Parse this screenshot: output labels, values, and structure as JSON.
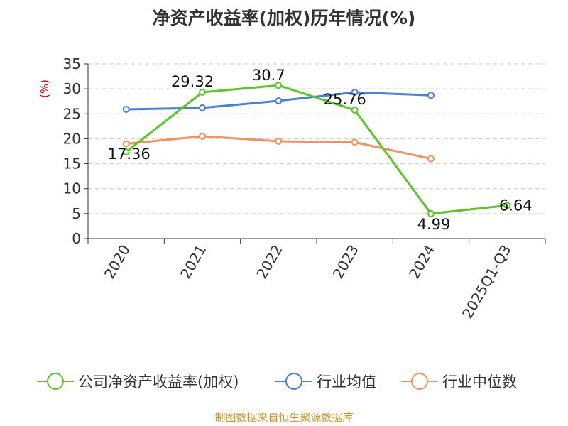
{
  "chart_data": {
    "type": "line",
    "title": "净资产收益率(加权)历年情况(%)",
    "ylabel": "(%)",
    "categories": [
      "2020",
      "2021",
      "2022",
      "2023",
      "2024",
      "2025Q1-Q3"
    ],
    "ylim": [
      0,
      35
    ],
    "yticks": [
      0,
      5,
      10,
      15,
      20,
      25,
      30,
      35
    ],
    "grid": true,
    "legend_position": "bottom",
    "series": [
      {
        "name": "公司净资产收益率(加权)",
        "color": "#5cc52a",
        "values": [
          17.36,
          29.32,
          30.7,
          25.76,
          4.99,
          6.64
        ],
        "labels": [
          "17.36",
          "29.32",
          "30.7",
          "25.76",
          "4.99",
          "6.64"
        ]
      },
      {
        "name": "行业均值",
        "color": "#4a7fdd",
        "values": [
          25.9,
          26.2,
          27.6,
          29.3,
          28.7,
          null
        ]
      },
      {
        "name": "行业中位数",
        "color": "#f4915f",
        "values": [
          19.0,
          20.5,
          19.5,
          19.3,
          16.0,
          null
        ]
      }
    ]
  },
  "footer": {
    "source": "制图数据来自恒生聚源数据库"
  }
}
